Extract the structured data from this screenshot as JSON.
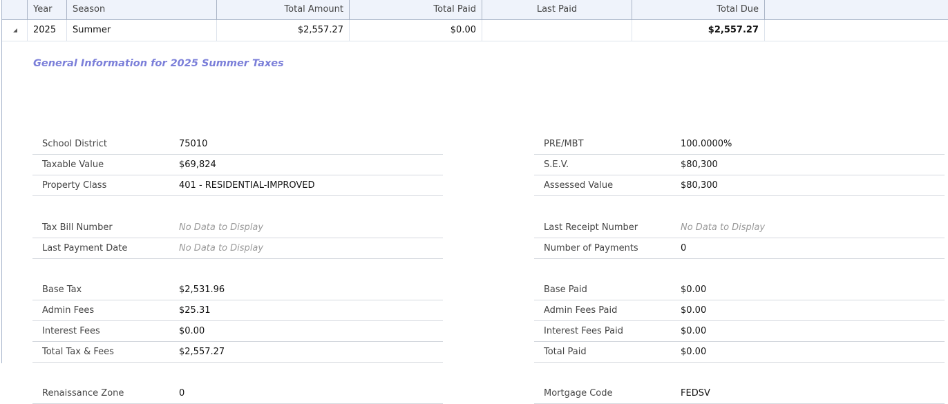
{
  "grid": {
    "headers": [
      "",
      "Year",
      "Season",
      "Total Amount",
      "Total Paid",
      "Last Paid",
      "Total Due",
      ""
    ],
    "row": {
      "year": "2025",
      "season": "Summer",
      "total_amount": "$2,557.27",
      "total_paid": "$0.00",
      "last_paid": "",
      "total_due": "$2,557.27"
    }
  },
  "detail": {
    "title": "General Information for 2025 Summer Taxes",
    "left": [
      [
        {
          "label": "School District",
          "value": "75010"
        },
        {
          "label": "Taxable Value",
          "value": "$69,824"
        },
        {
          "label": "Property Class",
          "value": "401 - RESIDENTIAL-IMPROVED"
        }
      ],
      [
        {
          "label": "Tax Bill Number",
          "value": "No Data to Display",
          "nodata": true
        },
        {
          "label": "Last Payment Date",
          "value": "No Data to Display",
          "nodata": true
        }
      ],
      [
        {
          "label": "Base Tax",
          "value": "$2,531.96"
        },
        {
          "label": "Admin Fees",
          "value": "$25.31"
        },
        {
          "label": "Interest Fees",
          "value": "$0.00"
        },
        {
          "label": "Total Tax & Fees",
          "value": "$2,557.27"
        }
      ],
      [
        {
          "label": "Renaissance Zone",
          "value": "0"
        }
      ]
    ],
    "right": [
      [
        {
          "label": "PRE/MBT",
          "value": "100.0000%"
        },
        {
          "label": "S.E.V.",
          "value": "$80,300"
        },
        {
          "label": "Assessed Value",
          "value": "$80,300"
        }
      ],
      [
        {
          "label": "Last Receipt Number",
          "value": "No Data to Display",
          "nodata": true
        },
        {
          "label": "Number of Payments",
          "value": "0"
        }
      ],
      [
        {
          "label": "Base Paid",
          "value": "$0.00"
        },
        {
          "label": "Admin Fees Paid",
          "value": "$0.00"
        },
        {
          "label": "Interest Fees Paid",
          "value": "$0.00"
        },
        {
          "label": "Total Paid",
          "value": "$0.00"
        }
      ],
      [
        {
          "label": "Mortgage Code",
          "value": "FEDSV"
        }
      ]
    ]
  }
}
